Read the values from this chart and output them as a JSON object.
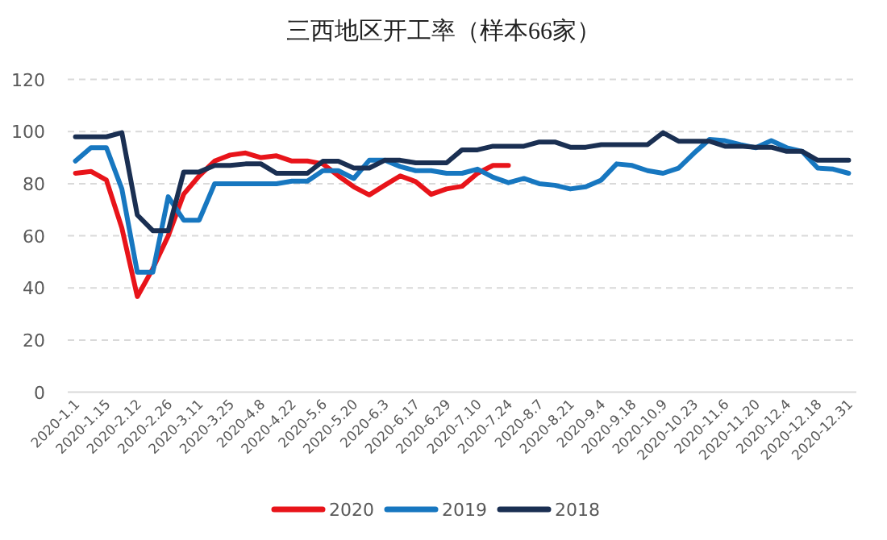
{
  "chart_data": {
    "type": "line",
    "title": "三西地区开工率（样本66家）",
    "categories": [
      "2020-1.1",
      null,
      "2020-1.15",
      null,
      "2020-2.12",
      null,
      "2020-2.26",
      null,
      "2020-3.11",
      null,
      "2020-3.25",
      null,
      "2020-4.8",
      null,
      "2020-4.22",
      null,
      "2020-5.6",
      null,
      "2020-5.20",
      null,
      "2020-6.3",
      null,
      "2020-6.17",
      null,
      "2020-6.29",
      null,
      "2020-7.10",
      null,
      "2020-7.24",
      null,
      "2020-8.7",
      null,
      "2020-8.21",
      null,
      "2020-9.4",
      null,
      "2020-9.18",
      null,
      "2020-10.9",
      null,
      "2020-10.23",
      null,
      "2020-11.6",
      null,
      "2020-11.20",
      null,
      "2020-12.4",
      null,
      "2020-12.18",
      null,
      "2020-12.31"
    ],
    "series": [
      {
        "name": "2020",
        "color": "#e8141a",
        "values": [
          84,
          84.7,
          81.4,
          63,
          36.7,
          47.4,
          60,
          76,
          83,
          88.7,
          91,
          91.8,
          90,
          90.7,
          88.7,
          88.7,
          87.6,
          83,
          78.8,
          75.7,
          79.4,
          83,
          80.8,
          75.9,
          78,
          79,
          84,
          87,
          87,
          null,
          null,
          null,
          null,
          null,
          null,
          null,
          null,
          null,
          null,
          null,
          null,
          null,
          null,
          null,
          null,
          null,
          null,
          null,
          null,
          null,
          null
        ]
      },
      {
        "name": "2019",
        "color": "#1777c0",
        "values": [
          88.7,
          93.8,
          93.8,
          78,
          46,
          46,
          75,
          66,
          66,
          80,
          80,
          80,
          80,
          80,
          81,
          81,
          85,
          85,
          82,
          89,
          89,
          86.6,
          85,
          85,
          84,
          84,
          85.6,
          82.5,
          80.4,
          82,
          80,
          79.4,
          78,
          78.8,
          81.4,
          87.6,
          87,
          85,
          84,
          86,
          91.7,
          97,
          96.5,
          95,
          93.8,
          96.5,
          93.8,
          92.4,
          86,
          85.6,
          84
        ]
      },
      {
        "name": "2018",
        "color": "#1a2f52",
        "values": [
          98,
          98,
          98,
          99.6,
          68,
          62,
          62,
          84.5,
          84.5,
          87,
          87,
          87.6,
          87.6,
          84,
          84,
          84,
          88.6,
          88.6,
          86,
          86,
          89,
          89,
          88,
          88,
          88,
          93,
          93,
          94.4,
          94.4,
          94.4,
          96,
          96,
          94,
          94,
          95,
          95,
          95,
          95,
          99.6,
          96.3,
          96.3,
          96.3,
          94.4,
          94.4,
          94,
          94,
          92.4,
          92.4,
          89,
          89,
          89
        ]
      }
    ],
    "ylim": [
      0,
      120
    ],
    "yticks": [
      0,
      20,
      40,
      60,
      80,
      100,
      120
    ],
    "grid": "y",
    "legend": "bottom"
  }
}
